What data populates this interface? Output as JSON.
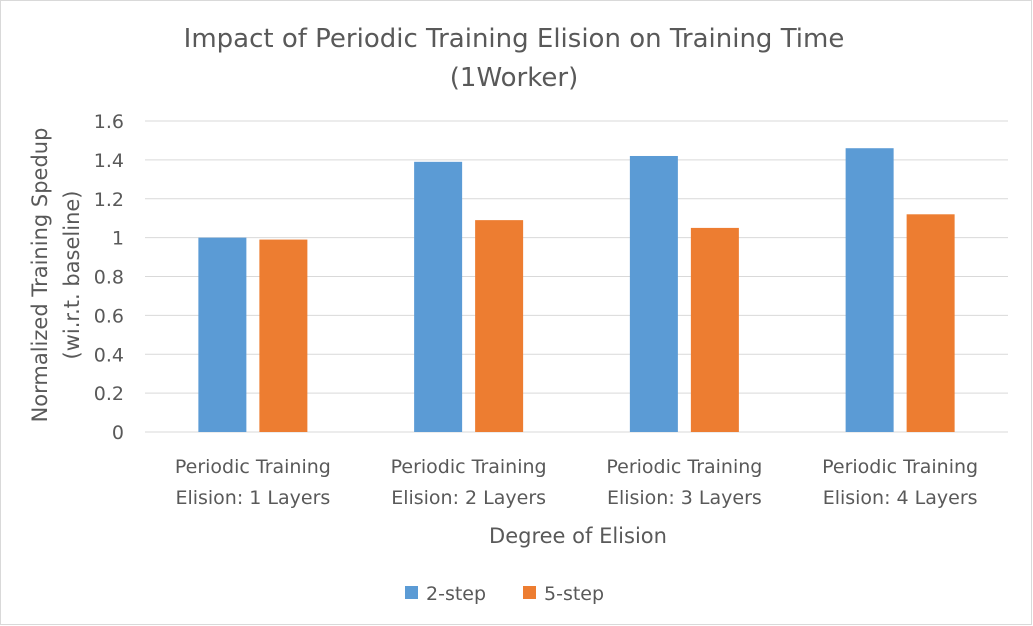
{
  "chart_data": {
    "type": "bar",
    "title": "Impact of Periodic Training Elision on Training Time",
    "subtitle": "(1Worker)",
    "xlabel": "Degree of Elision",
    "ylabel": "Normalized Training Spedup",
    "ylabel_sub": "(wi.r.t. baseline)",
    "categories": [
      [
        "Periodic Training",
        "Elision: 1 Layers"
      ],
      [
        "Periodic Training",
        "Elision: 2 Layers"
      ],
      [
        "Periodic Training",
        "Elision: 3 Layers"
      ],
      [
        "Periodic Training",
        "Elision: 4 Layers"
      ]
    ],
    "series": [
      {
        "name": "2-step",
        "color": "#5b9bd5",
        "values": [
          1.0,
          1.39,
          1.42,
          1.46
        ]
      },
      {
        "name": "5-step",
        "color": "#ed7d31",
        "values": [
          0.99,
          1.09,
          1.05,
          1.12
        ]
      }
    ],
    "ylim": [
      0,
      1.6
    ],
    "yticks": [
      "0",
      "0.2",
      "0.4",
      "0.6",
      "0.8",
      "1",
      "1.2",
      "1.4",
      "1.6"
    ],
    "grid": true,
    "legend_position": "bottom"
  }
}
